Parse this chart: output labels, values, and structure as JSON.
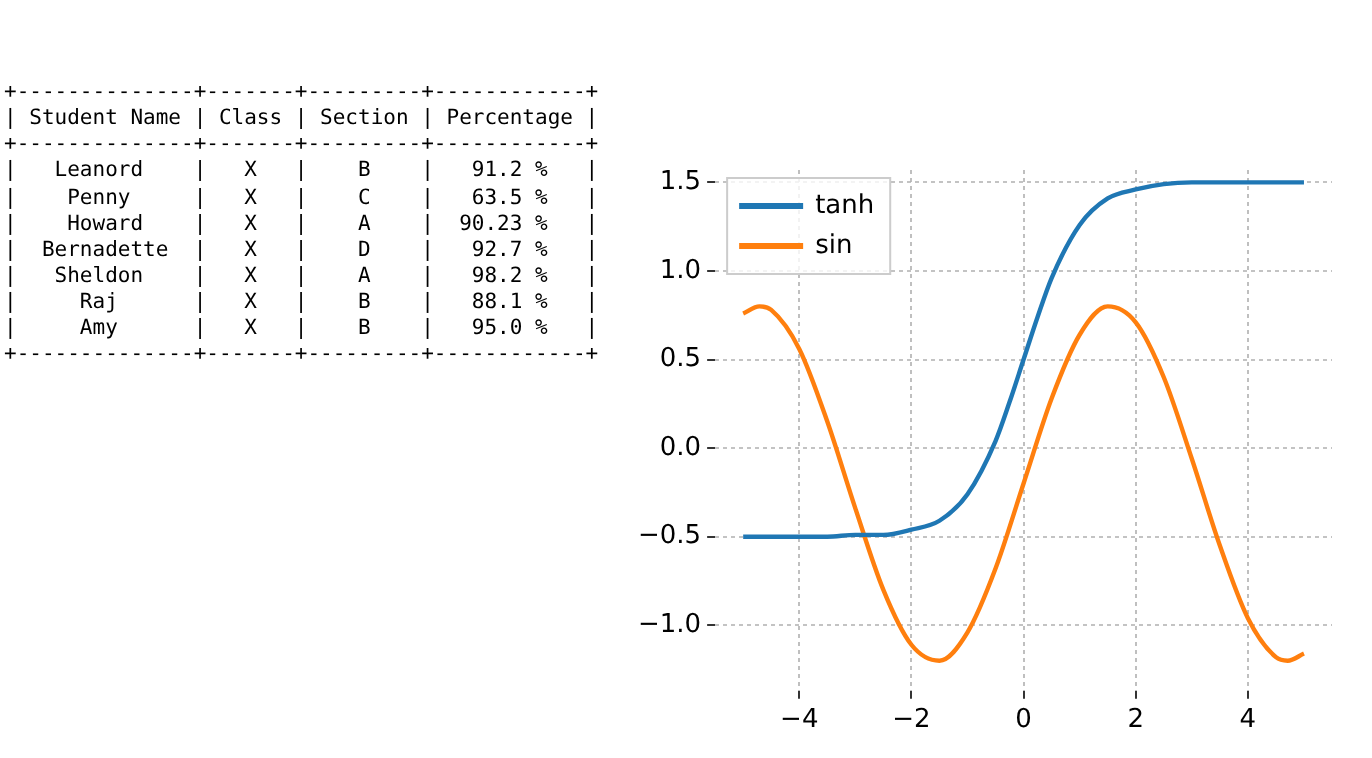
{
  "chart_data": {
    "type": "line",
    "annotations": [
      "+--------------+-------+---------+------------+",
      "| Student Name | Class | Section | Percentage |",
      "+--------------+-------+---------+------------+",
      "|   Leanord    |   X   |    B    |   91.2 %   |",
      "|    Penny     |   X   |    C    |   63.5 %   |",
      "|    Howard    |   X   |    A    |  90.23 %   |",
      "|  Bernadette  |   X   |    D    |   92.7 %   |",
      "|   Sheldon    |   X   |    A    |   98.2 %   |",
      "|     Raj      |   X   |    B    |   88.1 %   |",
      "|     Amy      |   X   |    B    |   95.0 %   |",
      "+--------------+-------+---------+------------+"
    ],
    "series": [
      {
        "name": "tanh",
        "color": "#1f77b4",
        "x": [
          -5,
          -4.5,
          -4,
          -3.5,
          -3,
          -2.5,
          -2,
          -1.5,
          -1,
          -0.5,
          -0.25,
          0,
          0.25,
          0.5,
          1,
          1.5,
          2,
          2.5,
          3,
          3.5,
          4,
          4.5,
          5
        ],
        "values": [
          -0.5,
          -0.5,
          -0.5,
          -0.5,
          -0.49,
          -0.49,
          -0.46,
          -0.41,
          -0.26,
          0.04,
          0.26,
          0.5,
          0.74,
          0.96,
          1.26,
          1.41,
          1.46,
          1.49,
          1.5,
          1.5,
          1.5,
          1.5,
          1.5
        ]
      },
      {
        "name": "sin",
        "color": "#ff7f0e",
        "x": [
          -5,
          -4.71,
          -4.5,
          -4,
          -3.5,
          -3,
          -2.5,
          -2,
          -1.5,
          -1,
          -0.5,
          0,
          0.5,
          1,
          1.5,
          2,
          2.5,
          3,
          3.5,
          4,
          4.5,
          4.71,
          5
        ],
        "values": [
          0.76,
          0.8,
          0.78,
          0.56,
          0.15,
          -0.34,
          -0.8,
          -1.11,
          -1.2,
          -1.04,
          -0.68,
          -0.2,
          0.28,
          0.64,
          0.8,
          0.71,
          0.4,
          -0.06,
          -0.55,
          -0.96,
          -1.18,
          -1.2,
          -1.16
        ]
      }
    ],
    "xlim": [
      -5.5,
      5.5
    ],
    "xticks": [
      {
        "value": -4,
        "label": "−4"
      },
      {
        "value": -2,
        "label": "−2"
      },
      0,
      2,
      4
    ],
    "ylim": [
      -1.37,
      1.57
    ],
    "yticks": [
      {
        "value": -1,
        "label": "−1.0"
      },
      {
        "value": -0.5,
        "label": "−0.5"
      },
      {
        "value": 0,
        "label": "0.0"
      },
      {
        "value": 0.5,
        "label": "0.5"
      },
      {
        "value": 1,
        "label": "1.0"
      },
      {
        "value": 1.5,
        "label": "1.5"
      }
    ],
    "grid": true,
    "legend": "top left",
    "marker": "none",
    "line_style": "solid"
  }
}
